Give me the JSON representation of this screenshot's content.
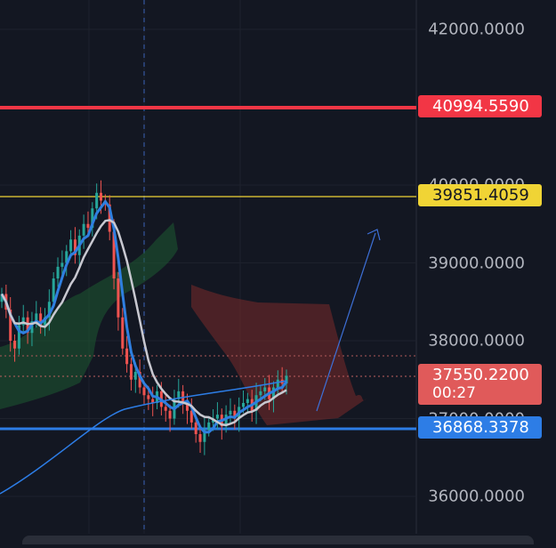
{
  "chart_data": {
    "type": "candlestick",
    "ylim": [
      35600,
      42300
    ],
    "y_ticks": [
      "42000.0000",
      "39000.0000",
      "38000.0000",
      "36000.0000"
    ],
    "partially_hidden_ticks": [
      "40000.0000",
      "37000.0000"
    ],
    "horizontal_lines": [
      {
        "price": 40994.559,
        "label": "40994.5590",
        "color": "#f23645"
      },
      {
        "price": 39851.4059,
        "label": "39851.4059",
        "color": "#f0d435"
      },
      {
        "price": 36868.3378,
        "label": "36868.3378",
        "color": "#2d7de6"
      }
    ],
    "last_price": {
      "label": "37550.2200",
      "countdown": "00:27",
      "color": "#e05a5a"
    },
    "closes": [
      38600,
      38400,
      38000,
      37900,
      38200,
      38300,
      38100,
      38250,
      38350,
      38200,
      38300,
      38500,
      38800,
      38950,
      39000,
      39150,
      39300,
      39100,
      39350,
      39500,
      39450,
      39700,
      39900,
      39800,
      39750,
      39400,
      38800,
      38300,
      37900,
      37700,
      37500,
      37600,
      37400,
      37300,
      37250,
      37200,
      37350,
      37150,
      37100,
      37000,
      37250,
      37350,
      37200,
      37100,
      36950,
      36800,
      36700,
      36850,
      36950,
      37000,
      37050,
      36900,
      37050,
      37100,
      37000,
      37150,
      37200,
      37250,
      37100,
      37300,
      37350,
      37400,
      37250,
      37400,
      37500,
      37450,
      37550
    ]
  }
}
